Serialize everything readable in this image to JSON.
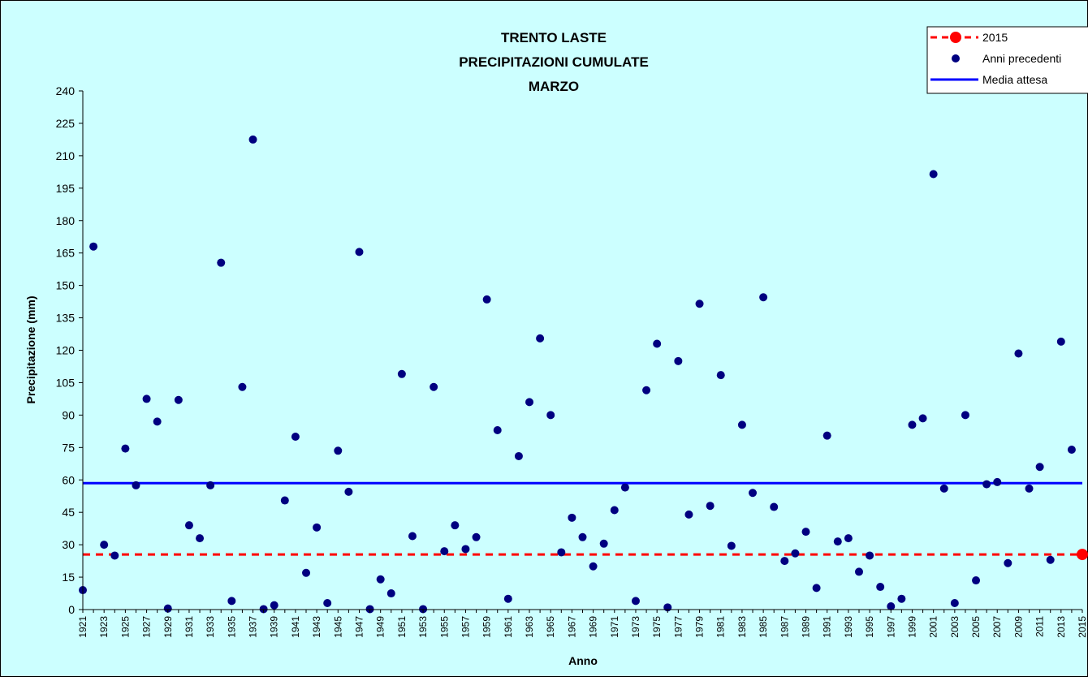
{
  "chart_data": {
    "type": "scatter",
    "title": [
      "TRENTO LASTE",
      "PRECIPITAZIONI CUMULATE",
      "MARZO"
    ],
    "xlabel": "Anno",
    "ylabel": "Precipitazione (mm)",
    "xlim": [
      1921,
      2015
    ],
    "ylim": [
      0,
      240
    ],
    "y_ticks": [
      0,
      15,
      30,
      45,
      60,
      75,
      90,
      105,
      120,
      135,
      150,
      165,
      180,
      195,
      210,
      225,
      240
    ],
    "x_ticks": [
      "1921",
      "1923",
      "1925",
      "1927",
      "1929",
      "1931",
      "1933",
      "1935",
      "1937",
      "1939",
      "1941",
      "1943",
      "1945",
      "1947",
      "1949",
      "1951",
      "1953",
      "1955",
      "1957",
      "1959",
      "1961",
      "1963",
      "1965",
      "1967",
      "1969",
      "1971",
      "1973",
      "1975",
      "1977",
      "1979",
      "1981",
      "1983",
      "1985",
      "1987",
      "1989",
      "1991",
      "1993",
      "1995",
      "1997",
      "1999",
      "2001",
      "2003",
      "2005",
      "2007",
      "2009",
      "2011",
      "2013",
      "2015"
    ],
    "legend": {
      "position": "top-right",
      "entries": [
        {
          "label": "2015",
          "style": "red-dashed-line-with-dot"
        },
        {
          "label": "Anni precedenti",
          "style": "navy-dot"
        },
        {
          "label": "Media attesa",
          "style": "blue-line"
        }
      ]
    },
    "colors": {
      "background": "#ccffff",
      "points": "#000080",
      "current": "#ff0000",
      "mean": "#0000ff"
    },
    "series": [
      {
        "name": "Anni precedenti",
        "years": [
          1921,
          1922,
          1923,
          1924,
          1925,
          1926,
          1927,
          1928,
          1929,
          1930,
          1931,
          1932,
          1933,
          1934,
          1935,
          1936,
          1937,
          1938,
          1939,
          1940,
          1941,
          1942,
          1943,
          1944,
          1945,
          1946,
          1947,
          1948,
          1949,
          1950,
          1951,
          1952,
          1953,
          1954,
          1955,
          1956,
          1957,
          1958,
          1959,
          1960,
          1961,
          1962,
          1963,
          1964,
          1965,
          1966,
          1967,
          1968,
          1969,
          1970,
          1971,
          1972,
          1973,
          1974,
          1975,
          1976,
          1977,
          1978,
          1979,
          1980,
          1981,
          1982,
          1983,
          1984,
          1985,
          1986,
          1987,
          1988,
          1989,
          1990,
          1991,
          1992,
          1993,
          1994,
          1995,
          1996,
          1997,
          1998,
          1999,
          2000,
          2001,
          2002,
          2003,
          2004,
          2005,
          2006,
          2007,
          2008,
          2009,
          2010,
          2011,
          2012,
          2013,
          2014
        ],
        "values": [
          9,
          168,
          30,
          25,
          74.5,
          57.5,
          97.5,
          87,
          0.5,
          97,
          39,
          33,
          57.5,
          160.5,
          4,
          103,
          217.5,
          0.2,
          2,
          50.5,
          80,
          17,
          38,
          3,
          73.5,
          54.5,
          165.5,
          0.2,
          14,
          7.5,
          109,
          34,
          0.2,
          103,
          27,
          39,
          28,
          33.5,
          143.5,
          83,
          5,
          71,
          96,
          125.5,
          90,
          26.5,
          42.5,
          33.5,
          20,
          30.5,
          46,
          56.5,
          4,
          101.5,
          123,
          1,
          115,
          44,
          141.5,
          48,
          108.5,
          29.5,
          85.5,
          54,
          144.5,
          47.5,
          22.5,
          26,
          36,
          10,
          80.5,
          31.5,
          33,
          17.5,
          25,
          10.5,
          1.5,
          5,
          85.5,
          88.5,
          201.5,
          56,
          3,
          90,
          13.5,
          58,
          59,
          21.5,
          118.5,
          56,
          66,
          23,
          124,
          74
        ]
      },
      {
        "name": "2015",
        "years": [
          2015
        ],
        "values": [
          25.5
        ]
      },
      {
        "name": "Media attesa",
        "value": 58.5
      }
    ]
  }
}
